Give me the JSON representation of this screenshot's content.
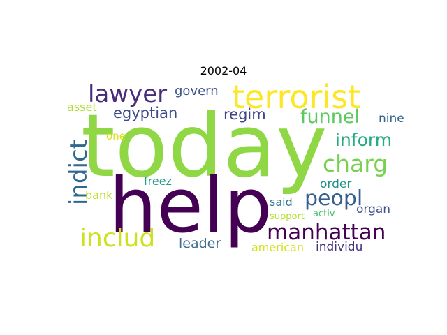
{
  "title": "2002-04",
  "words": {
    "today": "today",
    "help": "help",
    "terrorist": "terrorist",
    "lawyer": "lawyer",
    "govern": "govern",
    "asset": "asset",
    "egyptian": "egyptian",
    "regim": "regim",
    "funnel": "funnel",
    "nine": "nine",
    "one": "one",
    "inform": "inform",
    "indict": "indict",
    "charg": "charg",
    "freez": "freez",
    "order": "order",
    "peopl": "peopl",
    "bank": "bank",
    "said": "said",
    "organ": "organ",
    "activ": "activ",
    "support": "support",
    "includ": "includ",
    "manhattan": "manhattan",
    "leader": "leader",
    "american": "american",
    "individu": "individu"
  }
}
